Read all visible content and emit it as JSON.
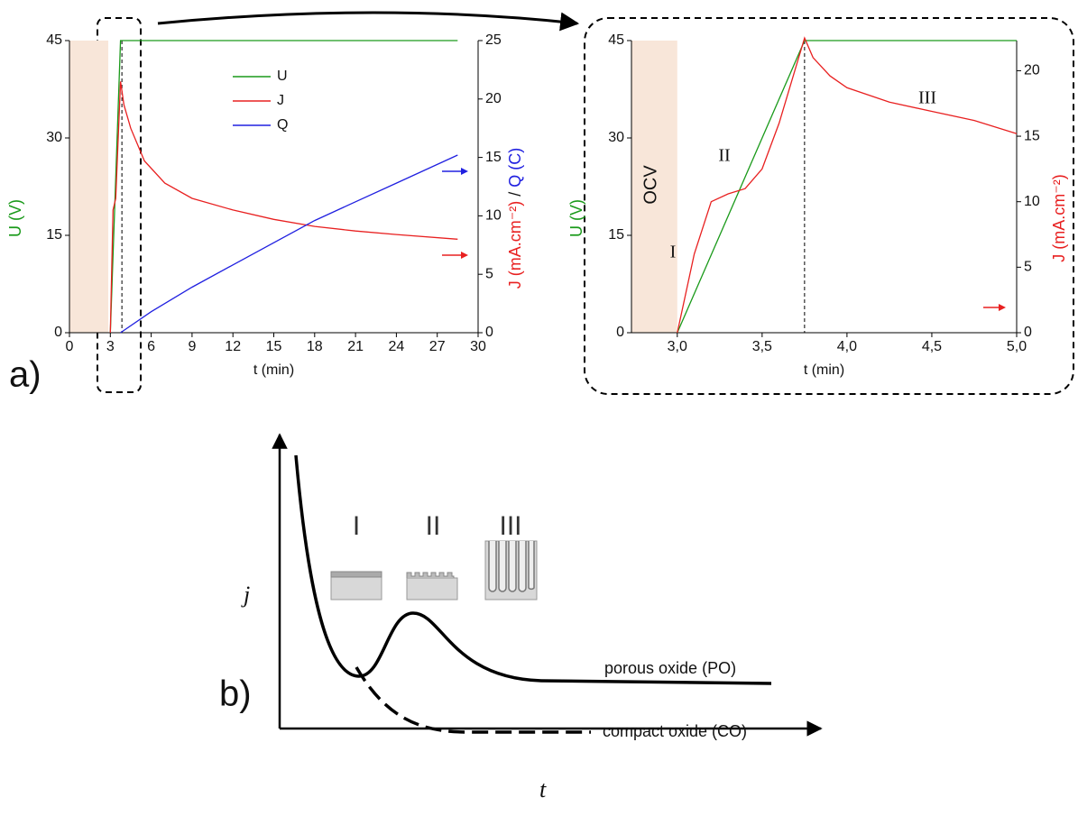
{
  "chart_data": [
    {
      "type": "line",
      "label": "a)",
      "xlabel": "t (min)",
      "ylabel": [
        {
          "text": "U (V)",
          "color": "#1a9a1a"
        }
      ],
      "y2label": [
        {
          "text": "J (mA.cm⁻²)",
          "color": "#e82020"
        },
        {
          "text": " / ",
          "color": "#111111"
        },
        {
          "text": "Q (C)",
          "color": "#2020e0"
        }
      ],
      "xlim": [
        0,
        30
      ],
      "xticks": [
        0,
        3,
        6,
        9,
        12,
        15,
        18,
        21,
        24,
        27,
        30
      ],
      "ylim": [
        0,
        45
      ],
      "yticks": [
        0,
        15,
        30,
        45
      ],
      "y2lim": [
        0,
        25
      ],
      "y2ticks": [
        0,
        5,
        10,
        15,
        20,
        25
      ],
      "shade": [
        0,
        2.85
      ],
      "vline": 3.85,
      "legend": true,
      "series": [
        {
          "name": "U",
          "color": "#1a9a1a",
          "x": [
            3,
            3.75,
            28.5
          ],
          "values": [
            0,
            45,
            45
          ]
        },
        {
          "name": "J",
          "color": "#e82020",
          "axis": "y2",
          "x": [
            3,
            3.2,
            3.4,
            3.75,
            4,
            4.5,
            5.5,
            7,
            9,
            12,
            15,
            18,
            21,
            24,
            28.5
          ],
          "values": [
            0,
            10.5,
            11.5,
            21.5,
            19.5,
            17.5,
            14.7,
            12.8,
            11.5,
            10.5,
            9.7,
            9.1,
            8.7,
            8.4,
            8
          ]
        },
        {
          "name": "Q",
          "color": "#2020e0",
          "axis": "y2",
          "x": [
            3.75,
            6,
            9,
            12,
            15,
            18,
            21,
            24,
            28.5
          ],
          "values": [
            0,
            1.8,
            3.9,
            5.8,
            7.7,
            9.6,
            11.2,
            12.8,
            15.2
          ]
        }
      ]
    },
    {
      "type": "line",
      "xlabel": "t (min)",
      "ylabel": [
        {
          "text": "U (V)",
          "color": "#1a9a1a"
        }
      ],
      "y2label": [
        {
          "text": "J (mA.cm⁻²)",
          "color": "#e82020"
        }
      ],
      "xlim": [
        2.73,
        5
      ],
      "xticks": [
        {
          "value": 3,
          "label": "3,0"
        },
        {
          "value": 3.5,
          "label": "3,5"
        },
        {
          "value": 4,
          "label": "4,0"
        },
        {
          "value": 4.5,
          "label": "4,5"
        },
        {
          "value": 5,
          "label": "5,0"
        }
      ],
      "ylim": [
        0,
        45
      ],
      "yticks": [
        0,
        15,
        30,
        45
      ],
      "y2lim": [
        0,
        22.3
      ],
      "y2ticks": [
        0,
        5,
        10,
        15,
        20
      ],
      "shade": [
        2.73,
        3.0
      ],
      "vline": 3.75,
      "legend": false,
      "annotations": [
        "OCV",
        "I",
        "II",
        "III"
      ],
      "series": [
        {
          "name": "U",
          "color": "#1a9a1a",
          "x": [
            3,
            3.75,
            5
          ],
          "values": [
            0,
            45,
            45
          ]
        },
        {
          "name": "J",
          "color": "#e82020",
          "axis": "y2",
          "x": [
            3,
            3.1,
            3.2,
            3.3,
            3.4,
            3.5,
            3.6,
            3.75,
            3.8,
            3.9,
            4,
            4.25,
            4.5,
            4.75,
            5
          ],
          "values": [
            0,
            6,
            10,
            10.6,
            11,
            12.5,
            16,
            22.5,
            21,
            19.6,
            18.7,
            17.6,
            16.9,
            16.2,
            15.2
          ]
        }
      ]
    }
  ],
  "diagram": {
    "label": "b)",
    "yaxis": "j",
    "xaxis": "t",
    "stages": [
      "I",
      "II",
      "III"
    ],
    "curves": [
      "porous oxide (PO)",
      "compact oxide (CO)"
    ]
  }
}
